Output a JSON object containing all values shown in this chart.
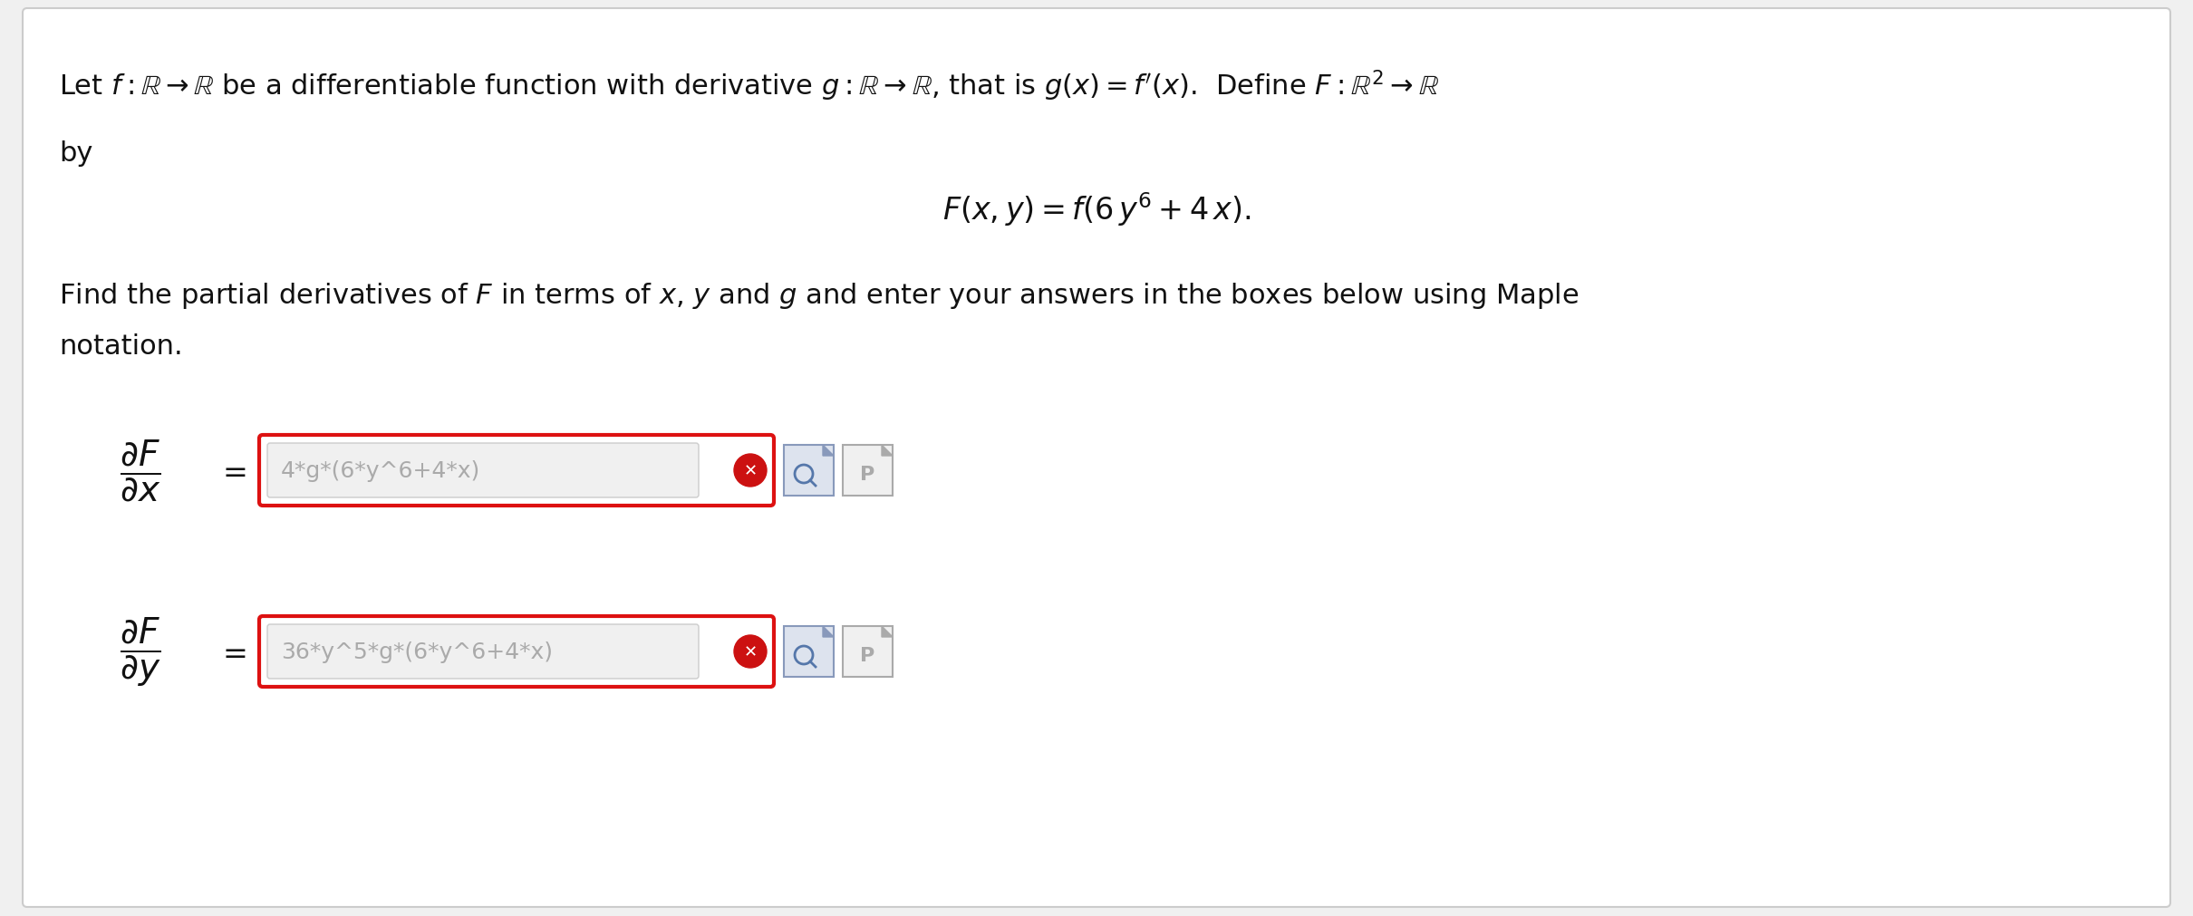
{
  "bg_color": "#f0f0f0",
  "inner_bg_color": "#ffffff",
  "content_bg": "#f5f5f5",
  "title_line1": "Let $f : \\mathbb{R} \\rightarrow \\mathbb{R}$ be a differentiable function with derivative $g : \\mathbb{R} \\rightarrow \\mathbb{R}$, that is $g(x) = f^{\\prime}(x)$.  Define $F : \\mathbb{R}^2 \\rightarrow \\mathbb{R}$",
  "title_line2": "by",
  "formula": "$F(x, y) = f(6\\,y^6 + 4\\,x).$",
  "instruction": "Find the partial derivatives of $F$ in terms of $x$, $y$ and $g$ and enter your answers in the boxes below using Maple",
  "instruction2": "notation.",
  "label1": "$\\dfrac{\\partial F}{\\partial x}$",
  "label2": "$\\dfrac{\\partial F}{\\partial y}$",
  "equals": "$=$",
  "answer1": "4*g*(6*y^6+4*x)",
  "answer2": "36*y^5*g*(6*y^6+4*x)",
  "box_border_color": "#dd1111",
  "box_fill_color": "#ffffff",
  "text_color": "#111111",
  "answer_text_color": "#aaaaaa",
  "cross_color": "#cc1111",
  "font_size_main": 22,
  "font_size_formula": 24,
  "font_size_label": 28,
  "font_size_answer": 18
}
